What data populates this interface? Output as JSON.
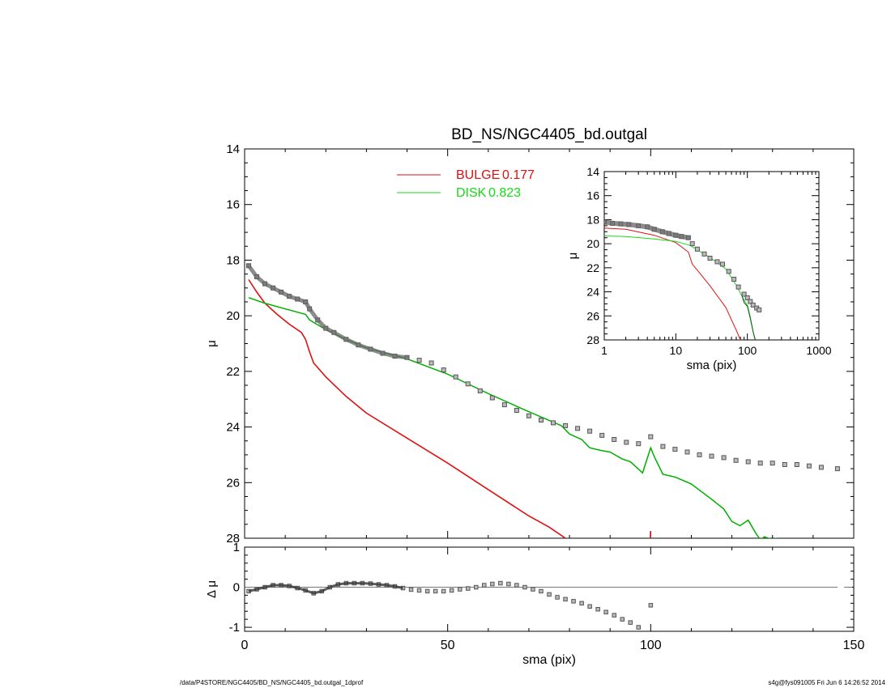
{
  "header": {
    "title": "BD_NS/NGC4405_bd.outgal"
  },
  "footer": {
    "path": "/data/P4STORE/NGC4405/BD_NS/NGC4405_bd.outgal_1dprof",
    "stamp": "s4g@fys091005  Fri Jun  6 14:26:52 2014"
  },
  "colors": {
    "bulge": "#dd1111",
    "disk": "#11dd11",
    "disk_dark": "#115511",
    "data": "#555555",
    "frame": "#000000"
  },
  "chart_data": [
    {
      "id": "main-profile",
      "type": "line",
      "title": "BD_NS/NGC4405_bd.outgal",
      "xlabel": "",
      "ylabel": "μ",
      "xlim": [
        0,
        150
      ],
      "ylim": [
        28,
        14
      ],
      "y_inverted": true,
      "yticks": [
        14,
        16,
        18,
        20,
        22,
        24,
        26,
        28
      ],
      "legend": {
        "placement": "top-center",
        "entries": [
          {
            "label": "BULGE",
            "value": "0.177",
            "color": "#dd1111"
          },
          {
            "label": "DISK",
            "value": "0.823",
            "color": "#11dd11"
          }
        ]
      },
      "series": [
        {
          "name": "BULGE",
          "style": "line",
          "color": "#dd1111",
          "x": [
            1,
            3,
            5,
            8,
            11,
            14,
            15,
            16,
            17,
            20,
            25,
            30,
            40,
            50,
            60,
            70,
            75,
            79
          ],
          "y": [
            18.7,
            19.15,
            19.55,
            19.95,
            20.3,
            20.6,
            20.85,
            21.3,
            21.7,
            22.2,
            22.9,
            23.5,
            24.4,
            25.3,
            26.25,
            27.2,
            27.6,
            28.0
          ]
        },
        {
          "name": "DISK",
          "style": "line",
          "color": "#11dd11",
          "x": [
            1,
            5,
            10,
            15,
            16,
            20,
            25,
            30,
            40,
            50,
            60,
            70,
            78,
            80,
            83,
            85,
            88,
            90,
            93,
            95,
            98,
            100,
            101,
            103,
            106,
            110,
            115,
            118,
            120,
            122,
            124,
            126,
            127,
            128,
            130,
            131
          ],
          "y": [
            19.35,
            19.55,
            19.75,
            19.95,
            20.15,
            20.5,
            20.85,
            21.15,
            21.55,
            22.1,
            22.8,
            23.45,
            23.95,
            24.25,
            24.45,
            24.75,
            24.85,
            24.9,
            25.15,
            25.25,
            25.65,
            24.75,
            25.1,
            25.7,
            25.8,
            26.05,
            26.6,
            26.95,
            27.4,
            27.55,
            27.35,
            27.85,
            28.05,
            27.95,
            28.05,
            28.0
          ]
        },
        {
          "name": "data",
          "style": "squares",
          "color": "#555555",
          "x": [
            1,
            3,
            5,
            7,
            9,
            11,
            13,
            15,
            16,
            18,
            20,
            22,
            25,
            28,
            31,
            34,
            37,
            40,
            43,
            46,
            49,
            52,
            55,
            58,
            61,
            64,
            67,
            70,
            73,
            76,
            79,
            82,
            85,
            88,
            91,
            94,
            97,
            100,
            103,
            106,
            109,
            112,
            115,
            118,
            121,
            124,
            127,
            130,
            133,
            136,
            139,
            142,
            146
          ],
          "y": [
            18.2,
            18.6,
            18.85,
            19.0,
            19.15,
            19.3,
            19.4,
            19.5,
            19.75,
            20.15,
            20.45,
            20.6,
            20.85,
            21.05,
            21.2,
            21.35,
            21.45,
            21.5,
            21.6,
            21.7,
            21.95,
            22.2,
            22.45,
            22.7,
            22.95,
            23.2,
            23.4,
            23.6,
            23.75,
            23.85,
            23.95,
            24.05,
            24.15,
            24.3,
            24.45,
            24.55,
            24.6,
            24.35,
            24.7,
            24.8,
            24.9,
            25.0,
            25.05,
            25.1,
            25.2,
            25.25,
            25.3,
            25.3,
            25.35,
            25.35,
            25.4,
            25.45,
            25.5
          ]
        }
      ]
    },
    {
      "id": "residuals",
      "type": "scatter",
      "xlabel": "sma (pix)",
      "ylabel": "Δ μ",
      "xlim": [
        0,
        150
      ],
      "ylim": [
        -1.1,
        1.0
      ],
      "xticks": [
        0,
        50,
        100,
        150
      ],
      "yticks": [
        -1,
        0,
        1
      ],
      "zero_line": true,
      "series": [
        {
          "name": "residual",
          "style": "squares",
          "color": "#555555",
          "x": [
            1,
            3,
            5,
            7,
            9,
            11,
            13,
            15,
            17,
            19,
            21,
            23,
            25,
            27,
            29,
            31,
            33,
            35,
            37,
            39,
            41,
            43,
            45,
            47,
            49,
            51,
            53,
            55,
            57,
            59,
            61,
            63,
            65,
            67,
            69,
            71,
            73,
            75,
            77,
            79,
            81,
            83,
            85,
            87,
            89,
            91,
            93,
            95,
            97,
            100
          ],
          "y": [
            -0.1,
            -0.05,
            0.0,
            0.05,
            0.05,
            0.03,
            -0.02,
            -0.08,
            -0.15,
            -0.1,
            0.0,
            0.07,
            0.1,
            0.1,
            0.1,
            0.09,
            0.07,
            0.05,
            0.02,
            -0.02,
            -0.06,
            -0.08,
            -0.1,
            -0.1,
            -0.1,
            -0.08,
            -0.05,
            -0.03,
            0.0,
            0.05,
            0.08,
            0.1,
            0.08,
            0.05,
            0.0,
            -0.05,
            -0.1,
            -0.18,
            -0.25,
            -0.3,
            -0.35,
            -0.4,
            -0.48,
            -0.55,
            -0.62,
            -0.7,
            -0.8,
            -0.88,
            -1.0,
            -0.45
          ]
        }
      ]
    },
    {
      "id": "inset-log-profile",
      "type": "line",
      "xlabel": "sma (pix)",
      "ylabel": "μ",
      "xscale": "log",
      "xlim": [
        1,
        1000
      ],
      "ylim": [
        28,
        14
      ],
      "y_inverted": true,
      "xticks": [
        1,
        10,
        100,
        1000
      ],
      "yticks": [
        14,
        16,
        18,
        20,
        22,
        24,
        26,
        28
      ],
      "series": [
        {
          "name": "BULGE",
          "style": "line",
          "color": "#dd1111",
          "x": [
            1,
            2,
            5,
            10,
            15,
            17,
            20,
            30,
            50,
            70,
            80,
            90
          ],
          "y": [
            18.7,
            18.8,
            19.3,
            19.9,
            20.7,
            21.7,
            22.2,
            23.5,
            25.3,
            27.2,
            28.0,
            28.3
          ]
        },
        {
          "name": "DISK",
          "style": "line",
          "color": "#11dd11",
          "x": [
            1,
            2,
            5,
            10,
            16,
            20,
            30,
            50,
            70,
            90,
            100,
            110,
            120,
            130
          ],
          "y": [
            19.35,
            19.4,
            19.6,
            19.8,
            20.15,
            20.5,
            21.15,
            22.1,
            23.45,
            24.7,
            25.1,
            26.1,
            27.3,
            28.0
          ]
        },
        {
          "name": "DISK-dark",
          "style": "line",
          "color": "#115511",
          "x": [
            85,
            90,
            100,
            110,
            120,
            130
          ],
          "y": [
            24.4,
            24.9,
            25.2,
            26.2,
            27.3,
            28.1
          ]
        },
        {
          "name": "data",
          "style": "squares",
          "color": "#555555",
          "x": [
            1,
            1.3,
            1.7,
            2.2,
            3,
            4,
            5,
            6.5,
            8,
            10,
            12,
            15,
            17,
            20,
            25,
            30,
            38,
            45,
            55,
            65,
            75,
            90,
            100,
            110,
            120,
            135,
            146
          ],
          "y": [
            18.2,
            18.3,
            18.35,
            18.4,
            18.5,
            18.6,
            18.8,
            19.0,
            19.15,
            19.3,
            19.4,
            19.5,
            20.0,
            20.45,
            20.85,
            21.2,
            21.5,
            21.7,
            22.3,
            22.95,
            23.6,
            24.2,
            24.5,
            24.8,
            25.1,
            25.35,
            25.5
          ]
        }
      ]
    }
  ]
}
